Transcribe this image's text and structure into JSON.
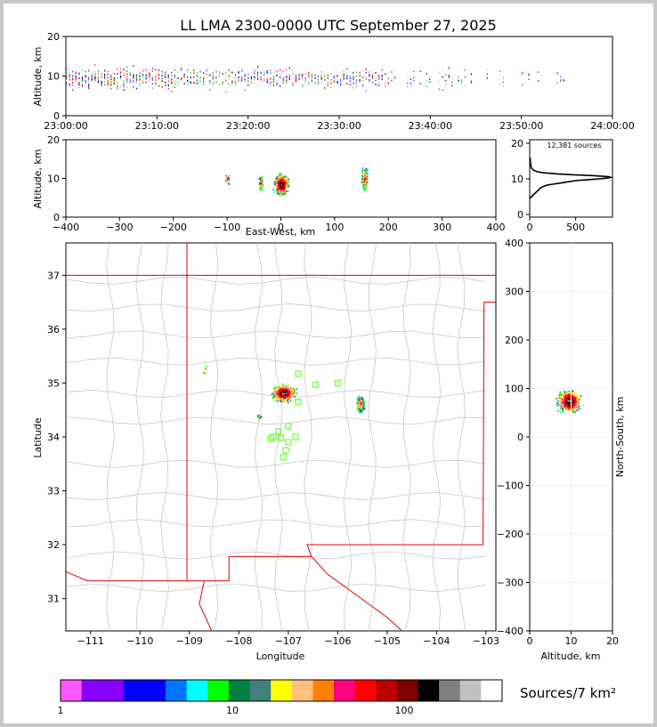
{
  "title": "LL LMA 2300-0000 UTC September 27, 2025",
  "colorbar": {
    "label": "Sources/7 km²",
    "tick_labels": [
      "1",
      "10",
      "100"
    ],
    "colors": [
      "#ff55ff",
      "#8800ff",
      "#8800ff",
      "#0000ff",
      "#0000ff",
      "#0077ff",
      "#00ffff",
      "#00ff00",
      "#008040",
      "#408080",
      "#ffff00",
      "#ffc080",
      "#ff8000",
      "#ff0080",
      "#ff0000",
      "#c00000",
      "#800000",
      "#000000",
      "#808080",
      "#c0c0c0",
      "#ffffff"
    ]
  },
  "chart_data": [
    {
      "name": "time-altitude",
      "type": "scatter",
      "xlabel": "",
      "ylabel": "Altitude, km",
      "x_tick_labels": [
        "23:00:00",
        "23:10:00",
        "23:20:00",
        "23:30:00",
        "23:40:00",
        "23:50:00",
        "24:00:00"
      ],
      "xlim": [
        "23:00:00",
        "24:00:00"
      ],
      "ylim": [
        0,
        20
      ],
      "y_ticks": [
        0,
        10,
        20
      ],
      "note_values": "source activity bursts between 23:00 and 23:56, altitudes mostly 5-14 km, densest near 10 km"
    },
    {
      "name": "east-west-altitude",
      "type": "scatter",
      "xlabel": "East-West, km",
      "ylabel": "Altitude, km",
      "xlim": [
        -400,
        400
      ],
      "x_ticks": [
        -400,
        -300,
        -200,
        -100,
        0,
        100,
        200,
        300,
        400
      ],
      "ylim": [
        0,
        20
      ],
      "y_ticks": [
        0,
        10,
        20
      ],
      "clusters": [
        {
          "x": -100,
          "y": 10
        },
        {
          "x": -38,
          "y": 9
        },
        {
          "x": 0,
          "y": 8.5
        },
        {
          "x": 155,
          "y": 10
        }
      ]
    },
    {
      "name": "altitude-histogram",
      "type": "line",
      "annotation": "12,381 sources",
      "xlim": [
        0,
        900
      ],
      "x_ticks": [
        0,
        500
      ],
      "ylim": [
        0,
        21
      ],
      "y_ticks": [
        0,
        10,
        20
      ],
      "x": [
        0,
        40,
        80,
        120,
        160,
        200,
        250,
        300,
        350,
        400,
        450,
        500,
        550,
        600,
        650,
        700,
        750,
        800,
        840,
        880,
        860,
        700,
        500,
        300,
        150,
        80,
        40,
        20,
        10,
        5
      ],
      "y": [
        4.5,
        5.5,
        6.5,
        7.5,
        8.0,
        8.3,
        8.5,
        8.7,
        8.9,
        9.1,
        9.3,
        9.5,
        9.6,
        9.7,
        9.8,
        9.9,
        10.0,
        10.1,
        10.2,
        10.4,
        10.6,
        10.9,
        11.1,
        11.4,
        11.7,
        12.0,
        12.5,
        13.0,
        14.0,
        16.0
      ]
    },
    {
      "name": "plan-view",
      "type": "scatter",
      "xlabel": "Longitude",
      "ylabel": "Latitude",
      "xlim": [
        -111.5,
        -102.8
      ],
      "x_ticks": [
        -111,
        -110,
        -109,
        -108,
        -107,
        -106,
        -105,
        -104,
        -103
      ],
      "ylim": [
        30.4,
        37.6
      ],
      "y_ticks": [
        31,
        32,
        33,
        34,
        35,
        36,
        37
      ],
      "clusters": [
        {
          "lon": -107.1,
          "lat": 34.8
        },
        {
          "lon": -105.55,
          "lat": 34.65
        },
        {
          "lon": -107.6,
          "lat": 34.38
        },
        {
          "lon": -108.7,
          "lat": 35.25
        }
      ],
      "stations": [
        {
          "lon": -106.8,
          "lat": 35.17
        },
        {
          "lon": -106.45,
          "lat": 34.97
        },
        {
          "lon": -106.0,
          "lat": 35.0
        },
        {
          "lon": -106.8,
          "lat": 34.65
        },
        {
          "lon": -107.0,
          "lat": 34.2
        },
        {
          "lon": -107.2,
          "lat": 34.1
        },
        {
          "lon": -107.3,
          "lat": 34.0
        },
        {
          "lon": -107.15,
          "lat": 33.98
        },
        {
          "lon": -107.0,
          "lat": 33.9
        },
        {
          "lon": -106.85,
          "lat": 34.0
        },
        {
          "lon": -107.05,
          "lat": 33.75
        },
        {
          "lon": -107.1,
          "lat": 33.62
        },
        {
          "lon": -107.35,
          "lat": 33.97
        }
      ]
    },
    {
      "name": "north-south-altitude",
      "type": "scatter",
      "xlabel": "Altitude, km",
      "ylabel": "North-South, km",
      "xlim": [
        0,
        20
      ],
      "x_ticks": [
        0,
        10,
        20
      ],
      "ylim": [
        -400,
        400
      ],
      "y_ticks": [
        -400,
        -300,
        -200,
        -100,
        0,
        100,
        200,
        300,
        400
      ],
      "clusters": [
        {
          "x": 9.5,
          "y": 75
        }
      ]
    }
  ]
}
